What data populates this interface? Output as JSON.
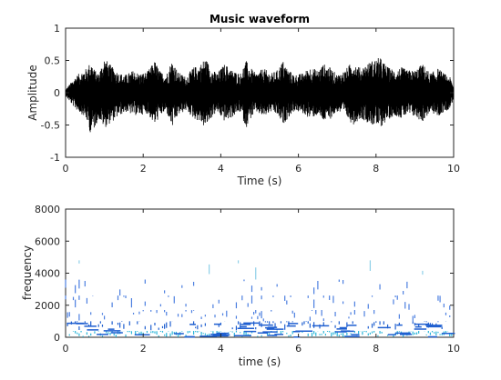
{
  "chart_data": [
    {
      "type": "line",
      "title": "Music waveform",
      "xlabel": "Time (s)",
      "ylabel": "Amplitude",
      "xlim": [
        0,
        10
      ],
      "ylim": [
        -1,
        1
      ],
      "xticks": [
        "0",
        "2",
        "4",
        "6",
        "8",
        "10"
      ],
      "yticks": [
        "-1",
        "-0.5",
        "0",
        "0.5",
        "1"
      ],
      "line_color": "#000000",
      "grid": false,
      "series": [
        {
          "x": [
            0.0,
            0.25,
            0.45,
            0.55,
            0.65,
            0.75,
            0.85,
            1.0,
            1.2,
            1.4,
            1.55,
            1.75,
            1.9,
            2.1,
            2.3,
            2.45,
            2.6,
            2.75,
            2.9,
            3.1,
            3.3,
            3.45,
            3.6,
            3.75,
            3.9,
            4.1,
            4.3,
            4.5,
            4.65,
            4.75,
            4.9,
            5.1,
            5.3,
            5.45,
            5.6,
            5.75,
            5.9,
            6.1,
            6.3,
            6.5,
            6.65,
            6.8,
            7.0,
            7.2,
            7.4,
            7.6,
            7.75,
            7.9,
            8.1,
            8.3,
            8.5,
            8.65,
            8.8,
            9.0,
            9.2,
            9.4,
            9.6,
            9.75,
            9.9,
            10.0
          ],
          "upper": [
            0.05,
            0.25,
            0.35,
            0.38,
            0.5,
            0.35,
            0.3,
            0.55,
            0.4,
            0.3,
            0.28,
            0.35,
            0.3,
            0.32,
            0.5,
            0.32,
            0.3,
            0.52,
            0.32,
            0.25,
            0.4,
            0.42,
            0.55,
            0.38,
            0.3,
            0.45,
            0.35,
            0.3,
            0.5,
            0.4,
            0.3,
            0.38,
            0.3,
            0.35,
            0.5,
            0.35,
            0.28,
            0.3,
            0.4,
            0.35,
            0.45,
            0.4,
            0.28,
            0.35,
            0.5,
            0.38,
            0.45,
            0.5,
            0.55,
            0.4,
            0.35,
            0.4,
            0.35,
            0.35,
            0.45,
            0.3,
            0.38,
            0.3,
            0.25,
            0.1
          ],
          "lower": [
            -0.05,
            -0.25,
            -0.35,
            -0.45,
            -0.65,
            -0.55,
            -0.4,
            -0.55,
            -0.45,
            -0.35,
            -0.3,
            -0.35,
            -0.35,
            -0.32,
            -0.5,
            -0.35,
            -0.3,
            -0.55,
            -0.35,
            -0.28,
            -0.4,
            -0.45,
            -0.55,
            -0.4,
            -0.3,
            -0.45,
            -0.38,
            -0.3,
            -0.55,
            -0.42,
            -0.3,
            -0.38,
            -0.3,
            -0.35,
            -0.5,
            -0.38,
            -0.28,
            -0.32,
            -0.4,
            -0.35,
            -0.45,
            -0.42,
            -0.3,
            -0.35,
            -0.5,
            -0.4,
            -0.45,
            -0.5,
            -0.55,
            -0.42,
            -0.35,
            -0.4,
            -0.35,
            -0.38,
            -0.45,
            -0.3,
            -0.38,
            -0.3,
            -0.25,
            -0.1
          ]
        }
      ]
    },
    {
      "type": "heatmap",
      "title": "",
      "xlabel": "time (s)",
      "ylabel": "frequency",
      "xlim": [
        0,
        10
      ],
      "ylim": [
        0,
        8000
      ],
      "xticks": [
        "0",
        "2",
        "4",
        "6",
        "8",
        "10"
      ],
      "yticks": [
        "0",
        "2000",
        "4000",
        "6000",
        "8000"
      ],
      "grid": false,
      "colors": [
        "#4c7fe0",
        "#1f5fd0",
        "#2ab5d8",
        "#8fd0e8"
      ],
      "bands": [
        {
          "freq": [
            0,
            400
          ],
          "density": 0.95,
          "color_index": 2
        },
        {
          "freq": [
            400,
            1000
          ],
          "density": 0.55,
          "color_index": 1
        },
        {
          "freq": [
            1000,
            1700
          ],
          "density": 0.3,
          "color_index": 0
        },
        {
          "freq": [
            1700,
            2600
          ],
          "density": 0.22,
          "color_index": 0
        },
        {
          "freq": [
            2600,
            3600
          ],
          "density": 0.12,
          "color_index": 0
        },
        {
          "freq": [
            3600,
            4800
          ],
          "density": 0.04,
          "color_index": 3
        }
      ]
    }
  ]
}
